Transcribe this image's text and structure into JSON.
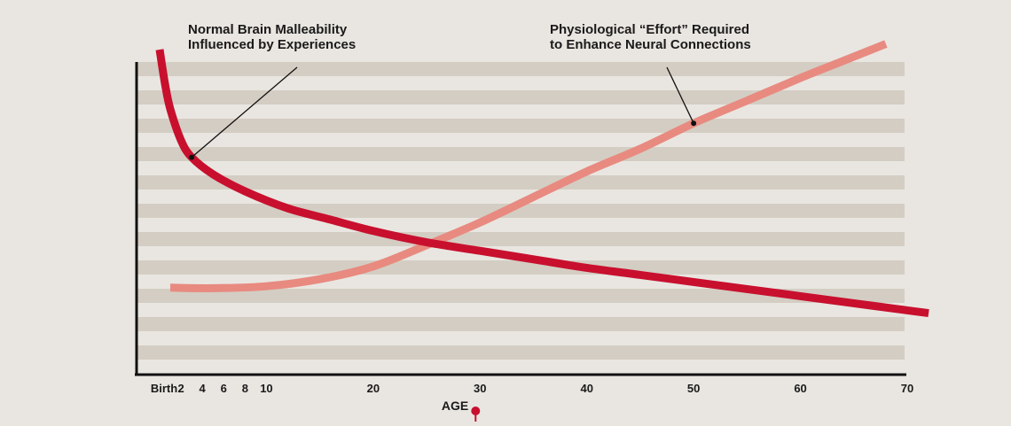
{
  "chart_data": {
    "type": "line",
    "title": "",
    "xlabel": "AGE",
    "ylabel": "",
    "xlim": [
      0,
      73
    ],
    "ylim": [
      0,
      100
    ],
    "grid": "horizontal-bands",
    "legend": "none",
    "x_ticks": [
      {
        "value": 0,
        "label": "Birth"
      },
      {
        "value": 2,
        "label": "2"
      },
      {
        "value": 4,
        "label": "4"
      },
      {
        "value": 6,
        "label": "6"
      },
      {
        "value": 8,
        "label": "8"
      },
      {
        "value": 10,
        "label": "10"
      },
      {
        "value": 20,
        "label": "20"
      },
      {
        "value": 30,
        "label": "30"
      },
      {
        "value": 40,
        "label": "40"
      },
      {
        "value": 50,
        "label": "50"
      },
      {
        "value": 60,
        "label": "60"
      },
      {
        "value": 70,
        "label": "70"
      }
    ],
    "series": [
      {
        "color": "#c8102e",
        "points": [
          [
            0,
            100
          ],
          [
            0.5,
            88
          ],
          [
            1,
            79
          ],
          [
            2,
            68
          ],
          [
            3,
            62
          ],
          [
            5,
            56
          ],
          [
            8,
            50
          ],
          [
            12,
            44
          ],
          [
            16,
            40
          ],
          [
            20,
            36
          ],
          [
            25,
            32
          ],
          [
            30,
            29
          ],
          [
            35,
            26
          ],
          [
            40,
            23
          ],
          [
            45,
            20.5
          ],
          [
            50,
            18
          ],
          [
            55,
            15.5
          ],
          [
            60,
            13
          ],
          [
            65,
            10.5
          ],
          [
            70,
            8
          ],
          [
            72,
            7
          ]
        ]
      },
      {
        "color": "#e88a80",
        "points": [
          [
            1,
            16
          ],
          [
            5,
            15.8
          ],
          [
            10,
            16.5
          ],
          [
            15,
            19
          ],
          [
            20,
            23.5
          ],
          [
            25,
            31
          ],
          [
            30,
            39
          ],
          [
            35,
            48
          ],
          [
            40,
            57
          ],
          [
            45,
            65
          ],
          [
            50,
            74
          ],
          [
            55,
            82
          ],
          [
            60,
            90
          ],
          [
            64,
            96
          ],
          [
            68,
            102
          ]
        ]
      }
    ],
    "annotations": [
      {
        "lines": [
          "Normal Brain Malleability",
          "Influenced by Experiences"
        ],
        "point": [
          3,
          62
        ]
      },
      {
        "lines": [
          "Physiological “Effort” Required",
          "to Enhance Neural Connections"
        ],
        "point": [
          50,
          74
        ]
      }
    ],
    "marker_x": 30
  }
}
